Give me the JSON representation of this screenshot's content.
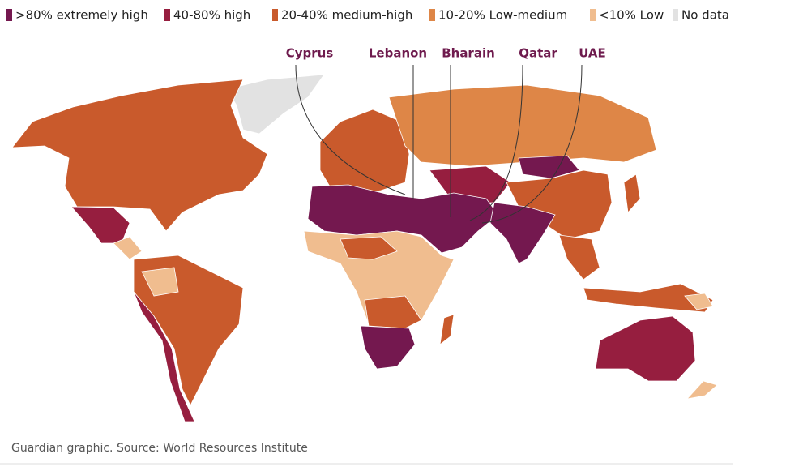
{
  "legend": [
    {
      "label": ">80% extremely high",
      "color": "#74184f"
    },
    {
      "label": "40-80% high",
      "color": "#961e3f"
    },
    {
      "label": "20-40% medium-high",
      "color": "#c95a2c"
    },
    {
      "label": "10-20% Low-medium",
      "color": "#de8647"
    },
    {
      "label": "<10% Low",
      "color": "#f0bd8f"
    },
    {
      "label": "No data",
      "color": "#e2e2e2"
    }
  ],
  "callouts": [
    "Cyprus",
    "Lebanon",
    "Bharain",
    "Qatar",
    "UAE"
  ],
  "source": "Guardian graphic. Source: World Resources Institute"
}
